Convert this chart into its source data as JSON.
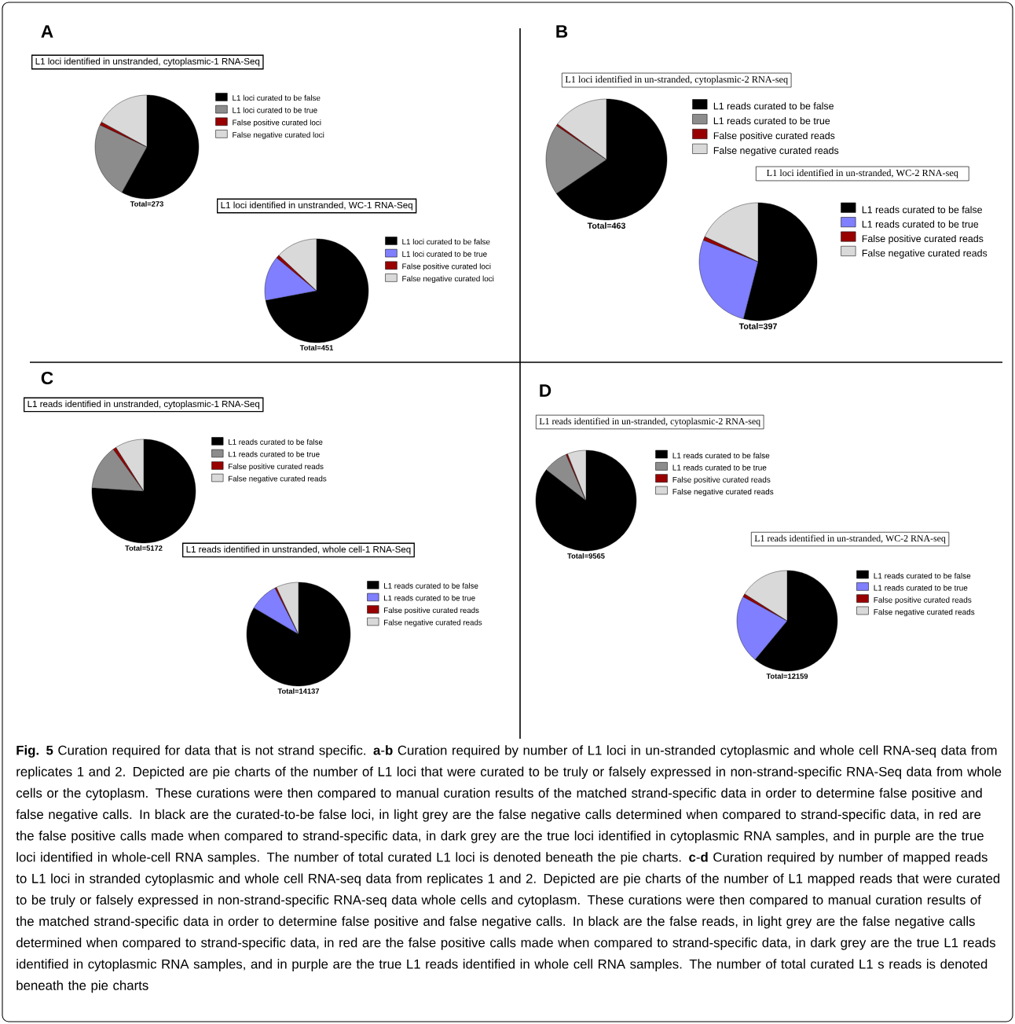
{
  "chart_data": [
    {
      "type": "pie",
      "title": "L1 loci identified in unstranded, cytoplasmic-1 RNA-Seq",
      "categories": [
        "L1 loci curated to be false",
        "L1 loci curated to be true",
        "False positive curated loci",
        "False negative curated loci"
      ],
      "values": [
        58,
        24,
        1,
        17
      ],
      "colors": [
        "#000000",
        "#8c8c8c",
        "#990000",
        "#d9d9d9"
      ],
      "legend": "right",
      "annotations": [
        "Total=273",
        "A"
      ]
    },
    {
      "type": "pie",
      "title": "L1 loci identified in unstranded, WC-1 RNA-Seq",
      "categories": [
        "L1 loci curated to be false",
        "L1 loci curated to be true",
        "False positive curated loci",
        "False negative curated loci"
      ],
      "values": [
        72,
        14,
        1,
        13
      ],
      "colors": [
        "#000000",
        "#7f7fff",
        "#990000",
        "#d9d9d9"
      ],
      "legend": "right",
      "annotations": [
        "Total=451"
      ]
    },
    {
      "type": "pie",
      "title": "L1 loci identified in un-stranded, cytoplasmic-2 RNA-seq",
      "categories": [
        "L1 reads curated to be false",
        "L1 reads curated to be true",
        "False positive curated reads",
        "False negative curated reads"
      ],
      "values": [
        65.5,
        19,
        0.5,
        15
      ],
      "colors": [
        "#000000",
        "#8c8c8c",
        "#990000",
        "#d9d9d9"
      ],
      "legend": "right",
      "annotations": [
        "Total=463",
        "B"
      ]
    },
    {
      "type": "pie",
      "title": "L1 loci identified in un-stranded, WC-2 RNA-seq",
      "categories": [
        "L1 reads curated to be false",
        "L1 reads curated to be true",
        "False positive curated reads",
        "False negative curated reads"
      ],
      "values": [
        54,
        27,
        1,
        18
      ],
      "colors": [
        "#000000",
        "#7f7fff",
        "#990000",
        "#d9d9d9"
      ],
      "legend": "right",
      "annotations": [
        "Total=397"
      ]
    },
    {
      "type": "pie",
      "title": "L1 reads identified in unstranded, cytoplasmic-1 RNA-Seq",
      "categories": [
        "L1 reads curated to be false",
        "L1 reads curated to be true",
        "False positive curated reads",
        "False negative curated reads"
      ],
      "values": [
        76,
        14,
        1,
        9
      ],
      "colors": [
        "#000000",
        "#8c8c8c",
        "#990000",
        "#d9d9d9"
      ],
      "legend": "right",
      "annotations": [
        "Total=5172",
        "C"
      ]
    },
    {
      "type": "pie",
      "title": "L1 reads identified in unstranded, whole cell-1 RNA-Seq",
      "categories": [
        "L1 reads curated to be false",
        "L1 reads curated to be true",
        "False positive curated reads",
        "False negative curated reads"
      ],
      "values": [
        83.5,
        9,
        0.5,
        7
      ],
      "colors": [
        "#000000",
        "#7f7fff",
        "#990000",
        "#d9d9d9"
      ],
      "legend": "right",
      "annotations": [
        "Total=14137"
      ]
    },
    {
      "type": "pie",
      "title": "L1 reads identified in un-stranded, cytoplasmic-2 RNA-seq",
      "categories": [
        "L1 reads curated to be false",
        "L1 reads curated to be true",
        "False positive curated reads",
        "False negative curated reads"
      ],
      "values": [
        85.5,
        8,
        0.5,
        6
      ],
      "colors": [
        "#000000",
        "#8c8c8c",
        "#990000",
        "#d9d9d9"
      ],
      "legend": "right",
      "annotations": [
        "Total=9565",
        "D"
      ]
    },
    {
      "type": "pie",
      "title": "L1 reads identified in un-stranded, WC-2 RNA-seq",
      "categories": [
        "L1 reads curated to be false",
        "L1 reads curated to be true",
        "False positive curated reads",
        "False negative curated reads"
      ],
      "values": [
        61,
        22,
        1,
        16
      ],
      "colors": [
        "#000000",
        "#7f7fff",
        "#990000",
        "#d9d9d9"
      ],
      "legend": "right",
      "annotations": [
        "Total=12159",
        "**Fig. 5** Curation required for data that is not strand specific. **a**-**b** Curation required by number of L1 loci in un-stranded cytoplasmic and whole cell RNA-seq data from replicates 1 and 2. Depicted are pie charts of the number of L1 loci that were curated to be truly or falsely expressed in non-strand-specific RNA-Seq data from whole cells or the cytoplasm. These curations were then compared to manual curation results of the matched strand-specific data in order to determine false positive and false negative calls. In black are the curated-to-be false loci, in light grey are the false negative calls determined when compared to strand-specific data, in red are the false positive calls made when compared to strand-specific data, in dark grey are the true loci identified in cytoplasmic RNA samples, and in purple are the true loci identified in whole-cell RNA samples. The number of total curated L1 loci is denoted beneath the pie charts. **c**-**d** Curation required by number of mapped reads to L1 loci in stranded cytoplasmic and whole cell RNA-seq data from replicates 1 and 2. Depicted are pie charts of the number of L1 mapped reads that were curated to be truly or falsely expressed in non-strand-specific RNA-seq data whole cells and cytoplasm. These curations were then compared to manual curation results of the matched strand-specific data in order to determine false positive and false negative calls. In black are the false reads, in light grey are the false negative calls determined when compared to strand-specific data, in red are the false positive calls made when compared to strand-specific data, in dark grey are the true L1 reads identified in cytoplasmic RNA samples, and in purple are the true L1 reads identified in whole cell RNA samples. The number of total curated L1 s reads is denoted beneath the pie charts"
      ]
    }
  ]
}
